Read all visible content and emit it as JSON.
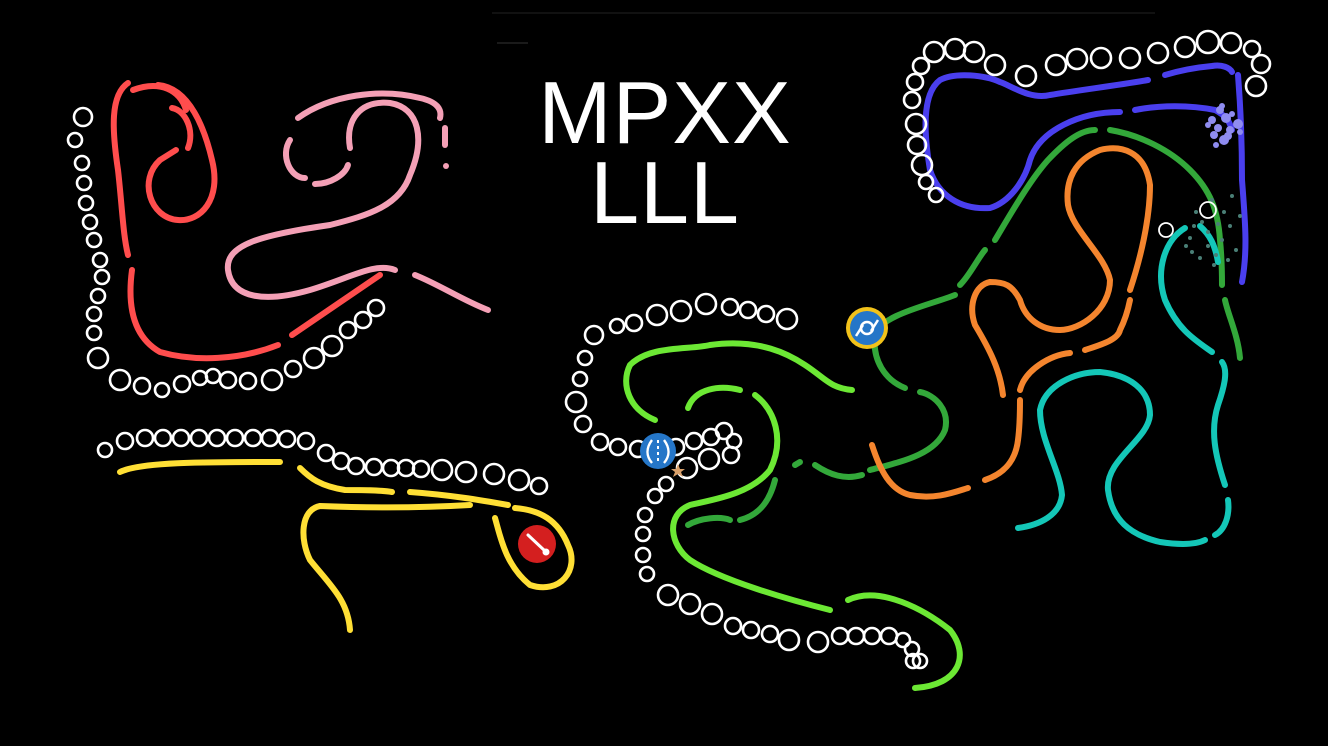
{
  "title": {
    "line1": "MPXX",
    "line2": "LLL"
  },
  "colors": {
    "background": "#000000",
    "ring": "#ffffff",
    "red_track": "#ff4d4d",
    "pink_track": "#f4a0b6",
    "yellow_track": "#ffdf35",
    "lime_track": "#6ce834",
    "green_track": "#33a83a",
    "orange_track": "#f4852e",
    "teal_track": "#14c7b8",
    "blue_track": "#4a3fee",
    "red_token": "#d41f1f",
    "blue_token": "#2576c8",
    "token_ring": "#f2c21a"
  },
  "tokens": [
    {
      "name": "red-pin-token",
      "icon": "pin-icon"
    },
    {
      "name": "blue-o-token",
      "icon": "o-glyph-icon"
    },
    {
      "name": "blue-split-token",
      "icon": "split-circle-icon"
    }
  ]
}
